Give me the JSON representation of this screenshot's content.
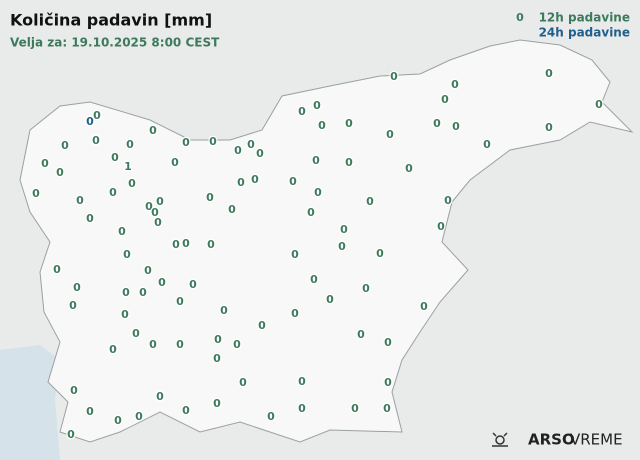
{
  "header": {
    "title": "Količina padavin [mm]",
    "subtitle": "Velja za: 19.10.2025 8:00 CEST"
  },
  "legend": [
    {
      "symbol": "0",
      "label": "12h padavine",
      "color": "#3d7a5c"
    },
    {
      "label": "24h padavine",
      "color": "#1f5f8b"
    }
  ],
  "stations_12h": {
    "color": "#3d7a5c",
    "values": [
      0,
      0,
      0,
      0,
      0,
      0,
      1,
      0,
      0,
      0,
      0,
      0,
      0,
      0,
      0,
      0,
      0,
      0,
      0,
      0,
      0,
      0,
      0,
      0,
      0,
      0,
      0,
      0,
      0,
      0,
      0,
      0,
      0,
      0,
      0,
      0,
      0,
      0,
      0,
      0,
      0,
      0,
      0,
      0,
      0,
      0,
      0,
      0,
      0,
      0,
      0,
      0,
      0,
      0,
      0,
      0,
      0,
      0,
      0,
      0,
      0,
      0,
      0,
      0,
      0,
      0,
      0,
      0,
      0,
      0,
      0,
      0,
      0,
      0,
      0,
      0,
      0,
      0,
      0,
      0,
      0,
      0,
      0,
      0,
      0,
      0,
      0,
      0,
      0,
      0,
      0,
      0,
      0,
      0,
      0,
      0,
      0,
      0,
      0,
      0,
      0,
      0
    ]
  },
  "stations_24h": {
    "color": "#1f5f8b",
    "values": [
      0
    ]
  },
  "footer": {
    "brand": "ARSO",
    "product": "VREME"
  }
}
